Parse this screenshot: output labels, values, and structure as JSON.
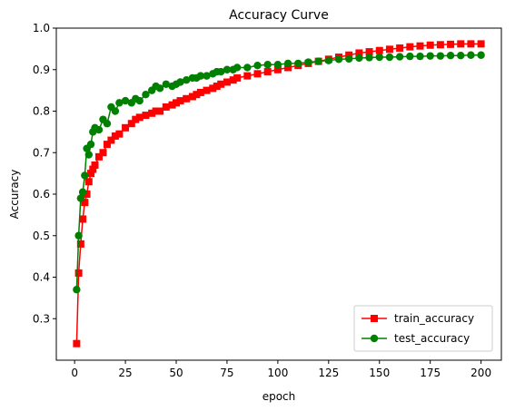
{
  "chart_data": {
    "type": "line",
    "title": "Accuracy Curve",
    "xlabel": "epoch",
    "ylabel": "Accuracy",
    "xlim": [
      -9,
      210
    ],
    "ylim": [
      0.2,
      1.0
    ],
    "xticks": [
      0,
      25,
      50,
      75,
      100,
      125,
      150,
      175,
      200
    ],
    "yticks": [
      0.3,
      0.4,
      0.5,
      0.6,
      0.7,
      0.8,
      0.9,
      1.0
    ],
    "ytick_labels": [
      "0.3",
      "0.4",
      "0.5",
      "0.6",
      "0.7",
      "0.8",
      "0.9",
      "1.0"
    ],
    "grid": false,
    "legend": "lower right",
    "series": [
      {
        "name": "train_accuracy",
        "color": "#ff0000",
        "marker": "square",
        "x": [
          1,
          2,
          3,
          4,
          5,
          6,
          7,
          8,
          9,
          10,
          12,
          14,
          16,
          18,
          20,
          22,
          25,
          28,
          30,
          32,
          35,
          38,
          40,
          42,
          45,
          48,
          50,
          52,
          55,
          58,
          60,
          62,
          65,
          68,
          70,
          72,
          75,
          78,
          80,
          85,
          90,
          95,
          100,
          105,
          110,
          115,
          120,
          125,
          130,
          135,
          140,
          145,
          150,
          155,
          160,
          165,
          170,
          175,
          180,
          185,
          190,
          195,
          200
        ],
        "values": [
          0.24,
          0.41,
          0.48,
          0.54,
          0.58,
          0.6,
          0.63,
          0.65,
          0.66,
          0.67,
          0.69,
          0.7,
          0.72,
          0.73,
          0.74,
          0.745,
          0.76,
          0.77,
          0.78,
          0.785,
          0.79,
          0.795,
          0.8,
          0.8,
          0.81,
          0.815,
          0.82,
          0.825,
          0.83,
          0.835,
          0.84,
          0.845,
          0.85,
          0.855,
          0.86,
          0.865,
          0.87,
          0.875,
          0.88,
          0.885,
          0.89,
          0.895,
          0.9,
          0.905,
          0.91,
          0.915,
          0.92,
          0.925,
          0.93,
          0.935,
          0.94,
          0.943,
          0.946,
          0.949,
          0.952,
          0.955,
          0.957,
          0.959,
          0.96,
          0.961,
          0.962,
          0.962,
          0.962
        ]
      },
      {
        "name": "test_accuracy",
        "color": "#008000",
        "marker": "circle",
        "x": [
          1,
          2,
          3,
          4,
          5,
          6,
          7,
          8,
          9,
          10,
          12,
          14,
          16,
          18,
          20,
          22,
          25,
          28,
          30,
          32,
          35,
          38,
          40,
          42,
          45,
          48,
          50,
          52,
          55,
          58,
          60,
          62,
          65,
          68,
          70,
          72,
          75,
          78,
          80,
          85,
          90,
          95,
          100,
          105,
          110,
          115,
          120,
          125,
          130,
          135,
          140,
          145,
          150,
          155,
          160,
          165,
          170,
          175,
          180,
          185,
          190,
          195,
          200
        ],
        "values": [
          0.37,
          0.5,
          0.59,
          0.605,
          0.645,
          0.71,
          0.695,
          0.72,
          0.75,
          0.76,
          0.755,
          0.78,
          0.77,
          0.81,
          0.8,
          0.82,
          0.825,
          0.82,
          0.83,
          0.825,
          0.84,
          0.85,
          0.86,
          0.855,
          0.865,
          0.86,
          0.865,
          0.87,
          0.875,
          0.88,
          0.88,
          0.885,
          0.885,
          0.89,
          0.895,
          0.895,
          0.9,
          0.9,
          0.905,
          0.905,
          0.91,
          0.912,
          0.912,
          0.915,
          0.915,
          0.918,
          0.92,
          0.922,
          0.925,
          0.926,
          0.928,
          0.929,
          0.93,
          0.93,
          0.931,
          0.932,
          0.932,
          0.933,
          0.933,
          0.934,
          0.934,
          0.935,
          0.935
        ]
      }
    ]
  }
}
